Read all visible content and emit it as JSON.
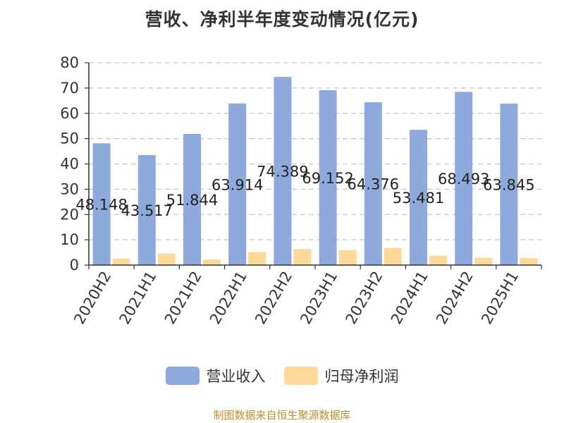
{
  "chart_data": {
    "type": "bar",
    "title": "营收、净利半年度变动情况(亿元)",
    "categories": [
      "2020H2",
      "2021H1",
      "2021H2",
      "2022H1",
      "2022H2",
      "2023H1",
      "2023H2",
      "2024H1",
      "2024H2",
      "2025H1"
    ],
    "series": [
      {
        "name": "营业收入",
        "color": "#8eaadc",
        "values": [
          48.148,
          43.517,
          51.844,
          63.914,
          74.389,
          69.152,
          64.376,
          53.481,
          68.493,
          63.845
        ],
        "labels": [
          "48.148",
          "43.517",
          "51.844",
          "63.914",
          "74.389",
          "69.152",
          "64.376",
          "53.481",
          "68.493",
          "63.845"
        ]
      },
      {
        "name": "归母净利润",
        "color": "#fcd999",
        "values": [
          2.6,
          4.6,
          2.2,
          5.1,
          6.3,
          5.9,
          6.8,
          3.7,
          2.9,
          2.8
        ]
      }
    ],
    "ylim": [
      0,
      80
    ],
    "yticks": [
      "0",
      "10",
      "20",
      "30",
      "40",
      "50",
      "60",
      "70",
      "80"
    ],
    "grid": true,
    "legend": "bottom-center"
  },
  "footer": {
    "source": "制图数据来自恒生聚源数据库"
  }
}
